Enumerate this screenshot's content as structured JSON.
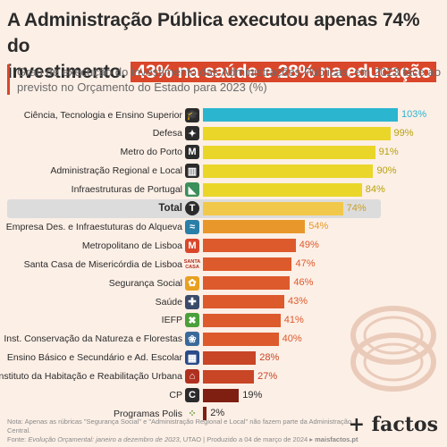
{
  "title": {
    "line1": "A Administração Pública executou apenas 74% do",
    "line2_plain": "investimento.",
    "line2_highlight": "43% na saúde e 28% na educação"
  },
  "subtitle": "Grau de execução do investimento das Administrações Públicas, em 2023 face ao previsto no Orçamento do Estado para 2023 (%)",
  "colors": {
    "over100": "#2bb5cf",
    "high": "#ead629",
    "total": "#f2c84b",
    "mid": "#e8982a",
    "low": "#dd5a2c",
    "lower": "#c84525",
    "lowest": "#7e1f12",
    "accent": "#d9462a"
  },
  "chart_data": {
    "type": "bar",
    "orientation": "horizontal",
    "unit": "%",
    "xlim": [
      0,
      103
    ],
    "categories": [
      "Ciência, Tecnologia e Ensino Superior",
      "Defesa",
      "Metro do Porto",
      "Administração Regional e Local",
      "Infraestruturas de Portugal",
      "Total",
      "Empresa Des. e Infraestuturas do Alqueva",
      "Metropolitano de Lisboa",
      "Santa Casa de Misericórdia de Lisboa",
      "Segurança Social",
      "Saúde",
      "IEFP",
      "Inst. Conservação da Natureza e Florestas",
      "Ensino Básico e Secundário e Ad. Escolar",
      "Instituto da Habitação e Reabilitação Urbana",
      "CP",
      "Programas Polis"
    ],
    "values": [
      103,
      99,
      91,
      90,
      84,
      74,
      54,
      49,
      47,
      46,
      43,
      41,
      40,
      28,
      27,
      19,
      2
    ],
    "value_labels": [
      "103%",
      "99%",
      "91%",
      "90%",
      "84%",
      "74%",
      "54%",
      "49%",
      "47%",
      "46%",
      "43%",
      "41%",
      "40%",
      "28%",
      "27%",
      "19%",
      "2%"
    ],
    "bar_colors": [
      "over100",
      "high",
      "high",
      "high",
      "high",
      "total",
      "mid",
      "low",
      "low",
      "low",
      "low",
      "low",
      "low",
      "lower",
      "lower",
      "lowest",
      "lowest"
    ],
    "icons": [
      "graduation-cap-icon",
      "soldier-icon",
      "metro-porto-icon",
      "building-icon",
      "ip-logo-icon",
      "total-icon",
      "alqueva-icon",
      "metro-lisboa-icon",
      "santa-casa-logo-icon",
      "social-security-icon",
      "health-cross-icon",
      "iefp-icon",
      "nature-icon",
      "school-icon",
      "housing-icon",
      "cp-icon",
      "polis-icon"
    ],
    "highlight_category": "Total"
  },
  "santa_casa_logo_text": [
    "SANTA",
    "CASA"
  ],
  "footer": {
    "note": "Nota: Apenas as rúbricas \"Segurança Social\" e \"Administração Regional e Local\" não fazem parte da Administração Central.",
    "source_prefix": "Fonte: ",
    "source_italic": "Evolução Orçamental: janeiro a dezembro de 2023",
    "source_suffix": ", UTAO | Produzido a 04 de março de 2024 ▸ ",
    "site": "maisfactos.pt",
    "brand": "+ factos"
  }
}
